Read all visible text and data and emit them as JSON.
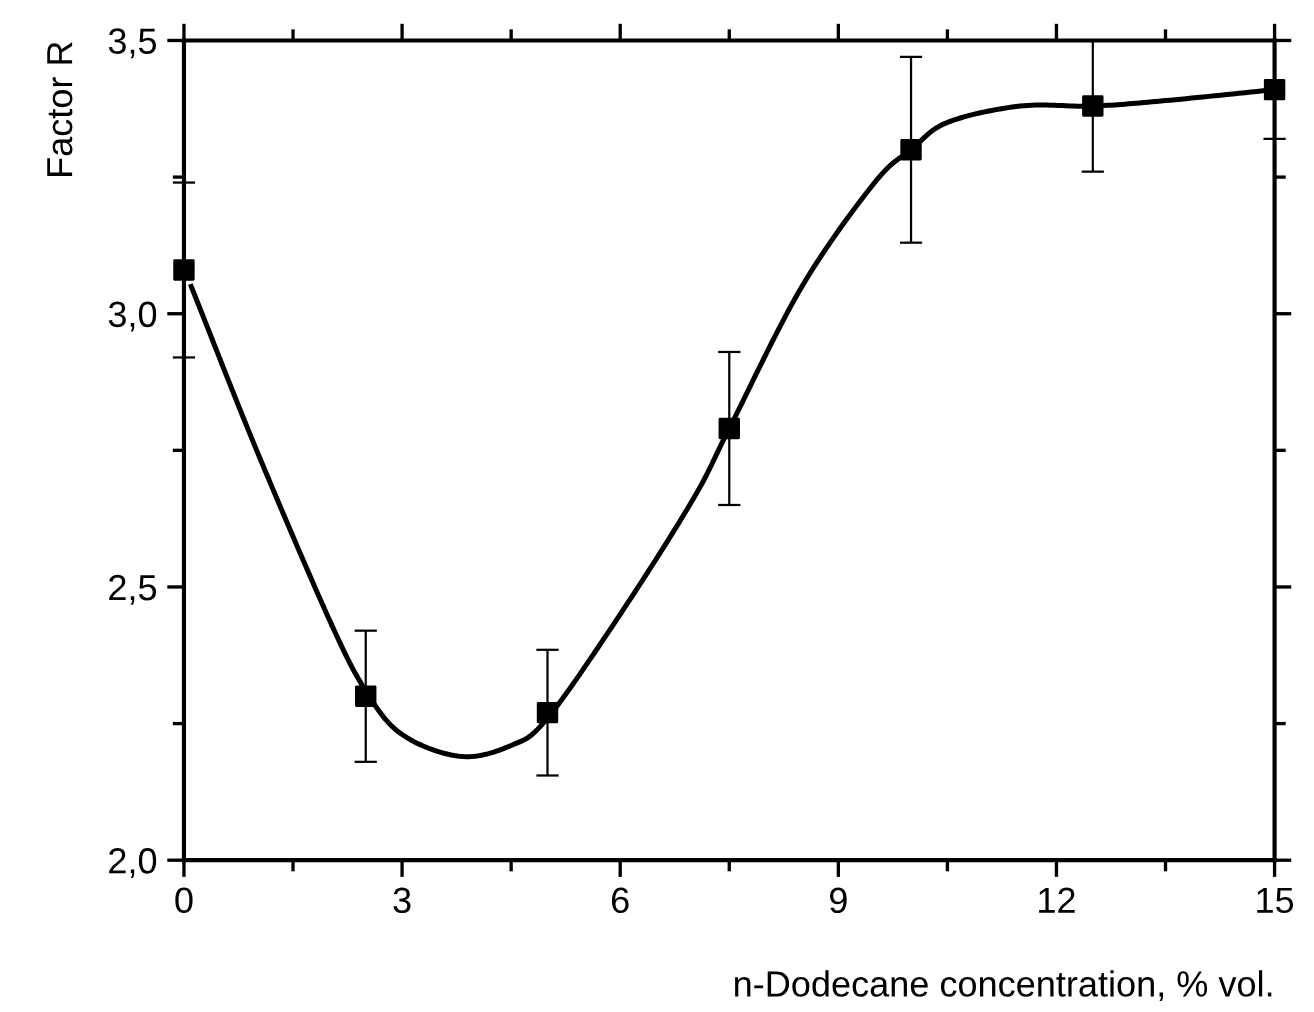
{
  "chart_data": {
    "type": "scatter",
    "xlabel": "n-Dodecane concentration, % vol.",
    "ylabel": "Factor R",
    "x": [
      0,
      2.5,
      5,
      7.5,
      10,
      12.5,
      15
    ],
    "series": [
      {
        "color": "#000000",
        "marker": "square",
        "values": [
          3.08,
          2.3,
          2.27,
          2.79,
          3.3,
          3.38,
          3.41
        ],
        "errors": [
          0.16,
          0.12,
          0.115,
          0.14,
          0.17,
          0.12,
          0.09
        ]
      },
      {
        "type": "line",
        "color": "#000000",
        "marker": "none",
        "line_style": "solid",
        "x": [
          0.1,
          1,
          2,
          2.5,
          3,
          3.8,
          4.5,
          5,
          6,
          7,
          7.5,
          8.5,
          9.5,
          10,
          10.5,
          11.5,
          12.5,
          13.5,
          15
        ],
        "values": [
          3.05,
          2.75,
          2.44,
          2.31,
          2.23,
          2.19,
          2.21,
          2.26,
          2.45,
          2.66,
          2.79,
          3.05,
          3.24,
          3.3,
          3.35,
          3.38,
          3.38,
          3.39,
          3.41
        ]
      }
    ],
    "xlim": [
      0,
      15
    ],
    "xticks": [
      0,
      3,
      6,
      9,
      12,
      15
    ],
    "ylim": [
      2.0,
      3.5
    ],
    "yticks": [
      {
        "value": 2.0,
        "label": "2,0"
      },
      {
        "value": 2.5,
        "label": "2,5"
      },
      {
        "value": 3.0,
        "label": "3,0"
      },
      {
        "value": 3.5,
        "label": "3,5"
      }
    ],
    "grid": false,
    "legend": false
  }
}
